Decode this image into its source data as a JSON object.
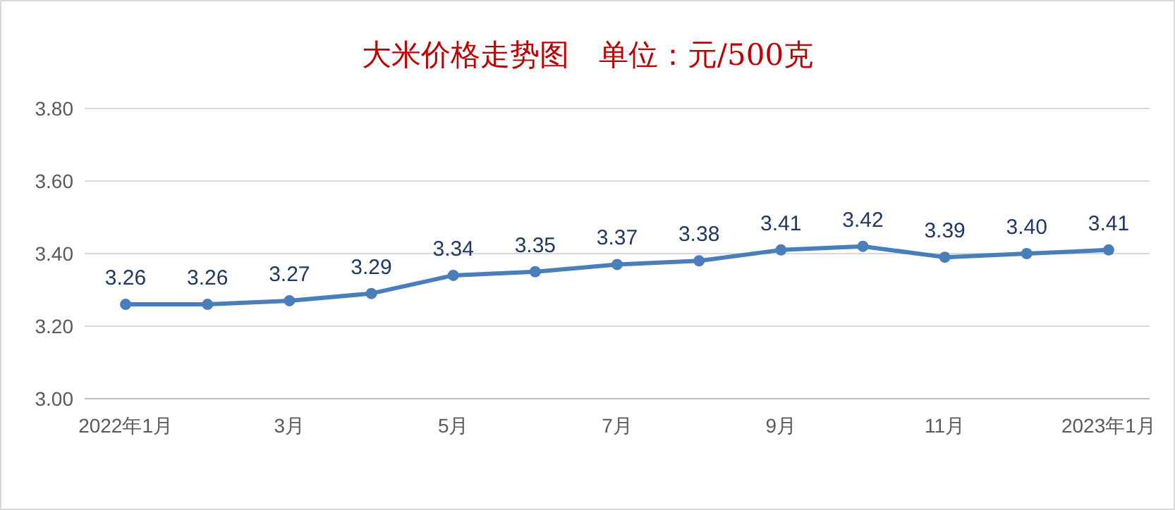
{
  "chart_data": {
    "type": "line",
    "title": "大米价格走势图　单位：元/500克",
    "categories": [
      "2022年1月",
      null,
      "3月",
      null,
      "5月",
      null,
      "7月",
      null,
      "9月",
      null,
      "11月",
      null,
      "2023年1月"
    ],
    "series": [
      {
        "color": "#4a7ebb",
        "values": [
          3.26,
          3.26,
          3.27,
          3.29,
          3.34,
          3.35,
          3.37,
          3.38,
          3.41,
          3.42,
          3.39,
          3.4,
          3.41
        ],
        "value_labels": [
          "3.26",
          "3.26",
          "3.27",
          "3.29",
          "3.34",
          "3.35",
          "3.37",
          "3.38",
          "3.41",
          "3.42",
          "3.39",
          "3.40",
          "3.41"
        ]
      }
    ],
    "ylim": [
      3.0,
      3.8
    ],
    "yticks": [
      {
        "value": 3.0,
        "label": "3.00"
      },
      {
        "value": 3.2,
        "label": "3.20"
      },
      {
        "value": 3.4,
        "label": "3.40"
      },
      {
        "value": 3.6,
        "label": "3.60"
      },
      {
        "value": 3.8,
        "label": "3.80"
      }
    ],
    "grid": "y",
    "marker": "circle",
    "line_style": "solid"
  }
}
